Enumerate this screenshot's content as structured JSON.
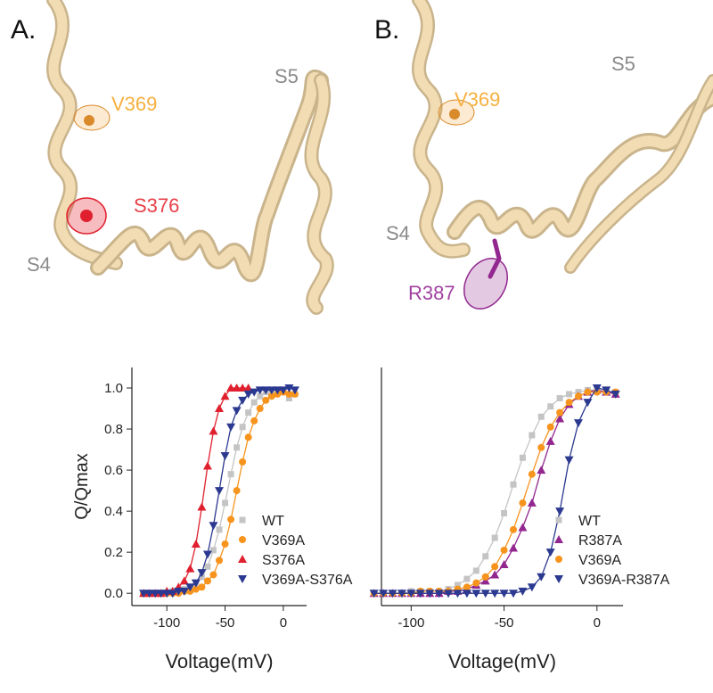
{
  "panels": [
    {
      "label": "A.",
      "annotations": [
        "V369",
        "S5",
        "S376",
        "S4"
      ]
    },
    {
      "label": "B.",
      "annotations": [
        "V369",
        "S5",
        "S4",
        "R387"
      ]
    }
  ],
  "chart_data": [
    {
      "type": "line",
      "xlabel": "Voltage(mV)",
      "ylabel": "Q/Qmax",
      "x": [
        -120,
        -115,
        -110,
        -105,
        -100,
        -95,
        -90,
        -85,
        -80,
        -75,
        -70,
        -65,
        -60,
        -55,
        -50,
        -45,
        -40,
        -35,
        -30,
        -25,
        -20,
        -15,
        -10,
        -5,
        0,
        5,
        10
      ],
      "xlim": [
        -130,
        20
      ],
      "xticks": [
        -100,
        -50,
        0
      ],
      "ylim": [
        -0.06,
        1.1
      ],
      "yticks": [
        {
          "value": 0,
          "label": "0.0"
        },
        {
          "value": 0.2,
          "label": "0.2"
        },
        {
          "value": 0.4,
          "label": "0.4"
        },
        {
          "value": 0.6,
          "label": "0.6"
        },
        {
          "value": 0.8,
          "label": "0.8"
        },
        {
          "value": 1,
          "label": "1.0"
        }
      ],
      "legend": "lower right",
      "series": [
        {
          "name": "WT",
          "color": "#c4c4c4",
          "marker": "square",
          "values": [
            0,
            0,
            0,
            0,
            0,
            0.01,
            0.01,
            0.02,
            0.03,
            0.05,
            0.08,
            0.13,
            0.21,
            0.31,
            0.44,
            0.58,
            0.71,
            0.81,
            0.88,
            0.93,
            0.96,
            0.98,
            0.99,
            0.99,
            0.99,
            0.95,
            0.97
          ]
        },
        {
          "name": "V369A",
          "color": "#f7941d",
          "marker": "circle",
          "values": [
            0,
            0,
            0,
            0,
            0,
            0,
            0,
            0.01,
            0.01,
            0.02,
            0.03,
            0.06,
            0.09,
            0.16,
            0.24,
            0.36,
            0.5,
            0.64,
            0.76,
            0.84,
            0.9,
            0.94,
            0.96,
            0.97,
            0.98,
            0.97,
            0.97
          ]
        },
        {
          "name": "S376A",
          "color": "#e0202e",
          "marker": "triangle-up",
          "values": [
            0,
            0,
            0,
            0,
            0.01,
            0.01,
            0.03,
            0.06,
            0.12,
            0.24,
            0.42,
            0.62,
            0.79,
            0.9,
            0.96,
            1,
            1,
            1,
            1,
            null,
            null,
            null,
            null,
            null,
            null,
            null,
            null
          ]
        },
        {
          "name": "V369A-S376A",
          "color": "#2b3990",
          "marker": "triangle-down",
          "values": [
            0,
            0,
            0,
            0,
            0,
            0,
            0.01,
            0.01,
            0.03,
            0.05,
            0.1,
            0.19,
            0.33,
            0.5,
            0.67,
            0.81,
            0.89,
            0.94,
            0.97,
            0.98,
            0.99,
            0.99,
            0.99,
            0.99,
            0.99,
            1,
            0.99
          ]
        }
      ]
    },
    {
      "type": "line",
      "xlabel": "Voltage(mV)",
      "x": [
        -120,
        -115,
        -110,
        -105,
        -100,
        -95,
        -90,
        -85,
        -80,
        -75,
        -70,
        -65,
        -60,
        -55,
        -50,
        -45,
        -40,
        -35,
        -30,
        -25,
        -20,
        -15,
        -10,
        -5,
        0,
        5,
        10
      ],
      "xlim": [
        -116,
        14
      ],
      "xticks": [
        -100,
        -50,
        0
      ],
      "ylim": [
        -0.06,
        1.1
      ],
      "legend": "lower right",
      "series": [
        {
          "name": "WT",
          "color": "#c4c4c4",
          "marker": "square",
          "values": [
            0,
            0,
            0,
            0,
            0.01,
            0.01,
            0.01,
            0.01,
            0.02,
            0.04,
            0.07,
            0.11,
            0.18,
            0.27,
            0.39,
            0.53,
            0.66,
            0.77,
            0.86,
            0.91,
            0.95,
            0.97,
            0.98,
            0.99,
            0.99,
            0.98,
            0.98
          ]
        },
        {
          "name": "R387A",
          "color": "#92278f",
          "marker": "triangle-up",
          "values": [
            0,
            0,
            0,
            0,
            0,
            0,
            0,
            0,
            0.01,
            0.01,
            0.02,
            0.04,
            0.06,
            0.09,
            0.14,
            0.22,
            0.32,
            0.44,
            0.6,
            0.74,
            0.85,
            0.92,
            0.96,
            0.98,
            0.99,
            0.98,
            0.97
          ]
        },
        {
          "name": "V369A",
          "color": "#f7941d",
          "marker": "circle",
          "values": [
            0,
            0,
            0,
            0,
            0,
            0.01,
            0.01,
            0.01,
            0.01,
            0.02,
            0.03,
            0.05,
            0.08,
            0.13,
            0.21,
            0.31,
            0.44,
            0.58,
            0.71,
            0.81,
            0.88,
            0.93,
            0.96,
            0.98,
            0.98,
            0.98,
            0.98
          ]
        },
        {
          "name": "V369A-R387A",
          "color": "#2b3990",
          "marker": "triangle-down",
          "values": [
            0,
            0,
            0,
            0,
            0,
            0,
            0,
            0,
            0,
            0,
            0,
            0,
            0,
            0,
            0,
            0,
            0.01,
            0.03,
            0.08,
            0.2,
            0.4,
            0.65,
            0.83,
            0.93,
            1,
            0.99,
            0.97
          ]
        }
      ]
    }
  ]
}
